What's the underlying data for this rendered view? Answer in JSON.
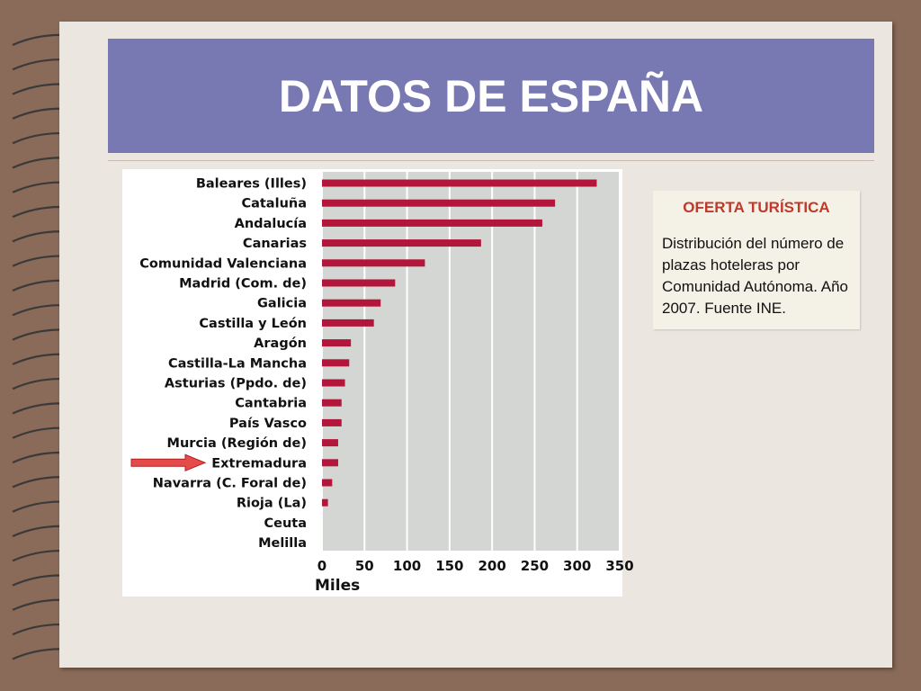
{
  "slide": {
    "title": "DATOS DE ESPAÑA"
  },
  "info_box": {
    "heading": "OFERTA TURÍSTICA",
    "body": "Distribución del número de plazas hoteleras por Comunidad  Autónoma. Año 2007. Fuente INE."
  },
  "colors": {
    "banner": "#7878b2",
    "bar": "#b3163b",
    "plot_background": "#d3d6d2",
    "heading": "#c0392b",
    "arrow": "#e64b4b"
  },
  "chart_data": {
    "type": "bar",
    "orientation": "horizontal",
    "categories": [
      "Baleares (Illes)",
      "Cataluña",
      "Andalucía",
      "Canarias",
      "Comunidad Valenciana",
      "Madrid (Com. de)",
      "Galicia",
      "Castilla y León",
      "Aragón",
      "Castilla-La Mancha",
      "Asturias (Ppdo. de)",
      "Cantabria",
      "País Vasco",
      "Murcia (Región de)",
      "Extremadura",
      "Navarra (C. Foral de)",
      "Rioja (La)",
      "Ceuta",
      "Melilla"
    ],
    "values": [
      323,
      274,
      259,
      187,
      121,
      86,
      69,
      61,
      34,
      32,
      27,
      23,
      23,
      19,
      19,
      12,
      7,
      0,
      0
    ],
    "xlabel": "Miles",
    "xlim": [
      0,
      350
    ],
    "xticks": [
      0,
      50,
      100,
      150,
      200,
      250,
      300,
      350
    ],
    "grid": true,
    "highlight": "Extremadura"
  }
}
